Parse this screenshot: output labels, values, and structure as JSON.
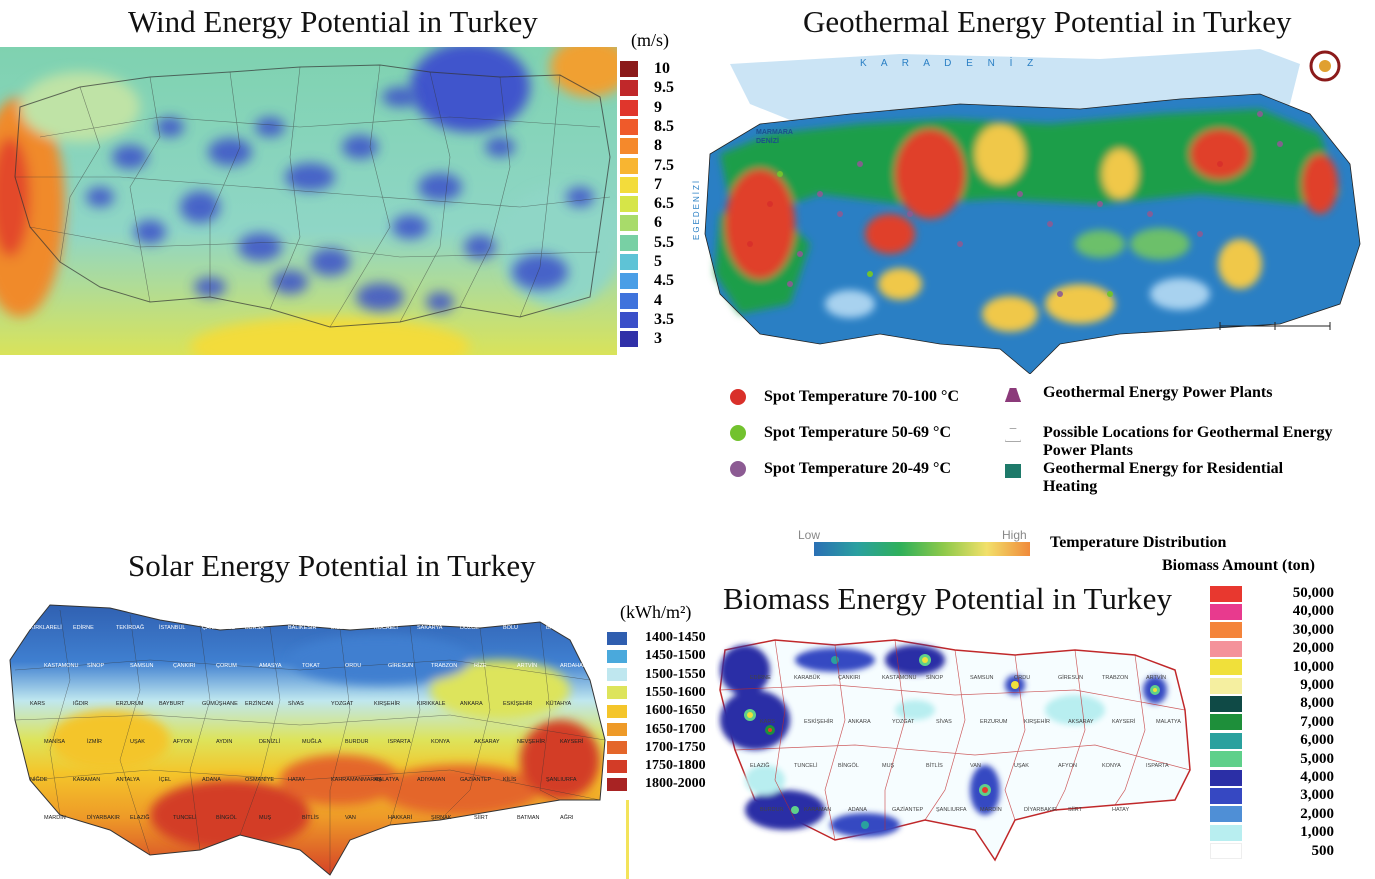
{
  "wind": {
    "title": "Wind Energy Potential in Turkey",
    "unit": "(m/s)",
    "legend": [
      {
        "label": "10",
        "color": "#8b1a1a"
      },
      {
        "label": "9.5",
        "color": "#c0282a"
      },
      {
        "label": "9",
        "color": "#e0362c"
      },
      {
        "label": "8.5",
        "color": "#ef5a2a"
      },
      {
        "label": "8",
        "color": "#f5892b"
      },
      {
        "label": "7.5",
        "color": "#f8b531"
      },
      {
        "label": "7",
        "color": "#f3dc3b"
      },
      {
        "label": "6.5",
        "color": "#d6e548"
      },
      {
        "label": "6",
        "color": "#a8db6a"
      },
      {
        "label": "5.5",
        "color": "#78d0a4"
      },
      {
        "label": "5",
        "color": "#5ec3d6"
      },
      {
        "label": "4.5",
        "color": "#4a9ee6"
      },
      {
        "label": "4",
        "color": "#3f73dc"
      },
      {
        "label": "3.5",
        "color": "#3a4fc9"
      },
      {
        "label": "3",
        "color": "#3030a8"
      }
    ]
  },
  "geothermal": {
    "title": "Geothermal Energy Potential in Turkey",
    "sea_north": "K A R A D E N İ Z",
    "sea_marmara": "MARMARA DENİZİ",
    "sea_west": "EGEDENİZİ",
    "legend_left": [
      {
        "label": "Spot Temperature 70-100 °C",
        "color": "#d9302a"
      },
      {
        "label": "Spot Temperature 50-69 °C",
        "color": "#72c22e"
      },
      {
        "label": "Spot Temperature 20-49 °C",
        "color": "#8c5b93"
      }
    ],
    "legend_right": [
      {
        "label": "Geothermal Energy Power Plants",
        "icon": "power-plant-icon"
      },
      {
        "label": "Possible Locations for Geothermal Energy Power Plants",
        "icon": "possible-plant-icon"
      },
      {
        "label": "Geothermal Energy for Residential Heating",
        "icon": "residential-heating-icon"
      }
    ],
    "scale_low": "Low",
    "scale_high": "High",
    "scale_label": "Temperature Distribution"
  },
  "solar": {
    "title": "Solar Energy Potential in Turkey",
    "unit": "(kWh/m²)",
    "legend": [
      {
        "label": "1400-1450",
        "color": "#2f5eaf"
      },
      {
        "label": "1450-1500",
        "color": "#4aa9dc"
      },
      {
        "label": "1500-1550",
        "color": "#bfe7ef"
      },
      {
        "label": "1550-1600",
        "color": "#dde45b"
      },
      {
        "label": "1600-1650",
        "color": "#f4c52a"
      },
      {
        "label": "1650-1700",
        "color": "#ee9a28"
      },
      {
        "label": "1700-1750",
        "color": "#e4662a"
      },
      {
        "label": "1750-1800",
        "color": "#d33c27"
      },
      {
        "label": "1800-2000",
        "color": "#a82323"
      }
    ],
    "cities": [
      "KIRKLARELİ",
      "EDİRNE",
      "TEKİRDAĞ",
      "İSTANBUL",
      "ÇANAKKALE",
      "BURSA",
      "BALIKESİR",
      "BİLECİK",
      "KOCAELİ",
      "SAKARYA",
      "DÜZCE",
      "BOLU",
      "BARTIN",
      "KASTAMONU",
      "SİNOP",
      "SAMSUN",
      "ÇANKIRI",
      "ÇORUM",
      "AMASYA",
      "TOKAT",
      "ORDU",
      "GİRESUN",
      "TRABZON",
      "RİZE",
      "ARTVİN",
      "ARDAHAN",
      "KARS",
      "IĞDIR",
      "ERZURUM",
      "BAYBURT",
      "GÜMÜŞHANE",
      "ERZİNCAN",
      "SİVAS",
      "YOZGAT",
      "KIRŞEHİR",
      "KIRIKKALE",
      "ANKARA",
      "ESKİŞEHİR",
      "KÜTAHYA",
      "MANİSA",
      "İZMİR",
      "UŞAK",
      "AFYON",
      "AYDIN",
      "DENİZLİ",
      "MUĞLA",
      "BURDUR",
      "ISPARTA",
      "KONYA",
      "AKSARAY",
      "NEVŞEHİR",
      "KAYSERİ",
      "NİĞDE",
      "KARAMAN",
      "ANTALYA",
      "İÇEL",
      "ADANA",
      "OSMANİYE",
      "HATAY",
      "KAHRAMANMARAŞ",
      "MALATYA",
      "ADIYAMAN",
      "GAZİANTEP",
      "KİLİS",
      "ŞANLIURFA",
      "MARDİN",
      "DİYARBAKIR",
      "ELAZIĞ",
      "TUNCELİ",
      "BİNGÖL",
      "MUŞ",
      "BİTLİS",
      "VAN",
      "HAKKARİ",
      "ŞIRNAK",
      "SİİRT",
      "BATMAN",
      "AĞRI"
    ]
  },
  "biomass": {
    "title": "Biomass Energy Potential in Turkey",
    "unit": "Biomass Amount (ton)",
    "legend": [
      {
        "label": "50,000",
        "color": "#e8382f"
      },
      {
        "label": "40,000",
        "color": "#e83a8e"
      },
      {
        "label": "30,000",
        "color": "#f4843a"
      },
      {
        "label": "20,000",
        "color": "#f4929a"
      },
      {
        "label": "10,000",
        "color": "#f0e03a"
      },
      {
        "label": "9,000",
        "color": "#f5efa0"
      },
      {
        "label": "8,000",
        "color": "#0f4a46"
      },
      {
        "label": "7,000",
        "color": "#1e8f3a"
      },
      {
        "label": "6,000",
        "color": "#2aa19e"
      },
      {
        "label": "5,000",
        "color": "#5fd08a"
      },
      {
        "label": "4,000",
        "color": "#2b2fa6"
      },
      {
        "label": "3,000",
        "color": "#3648c2"
      },
      {
        "label": "2,000",
        "color": "#4f8fd6"
      },
      {
        "label": "1,000",
        "color": "#b8eef0"
      },
      {
        "label": "500",
        "color": "#ffffff"
      }
    ],
    "cities": [
      "EDİRNE",
      "KARABÜK",
      "ÇANKIRI",
      "KASTAMONU",
      "SİNOP",
      "SAMSUN",
      "ORDU",
      "GİRESUN",
      "TRABZON",
      "ARTVİN",
      "KARS",
      "ESKİŞEHİR",
      "ANKARA",
      "YOZGAT",
      "SİVAS",
      "ERZURUM",
      "KIRŞEHİR",
      "AKSARAY",
      "KAYSERİ",
      "MALATYA",
      "ELAZIĞ",
      "TUNCELİ",
      "BİNGÖL",
      "MUŞ",
      "BİTLİS",
      "VAN",
      "UŞAK",
      "AFYON",
      "KONYA",
      "ISPARTA",
      "BURDUR",
      "KARAMAN",
      "ADANA",
      "GAZİANTEP",
      "ŞANLIURFA",
      "MARDİN",
      "DİYARBAKIR",
      "SİİRT",
      "HATAY"
    ]
  }
}
